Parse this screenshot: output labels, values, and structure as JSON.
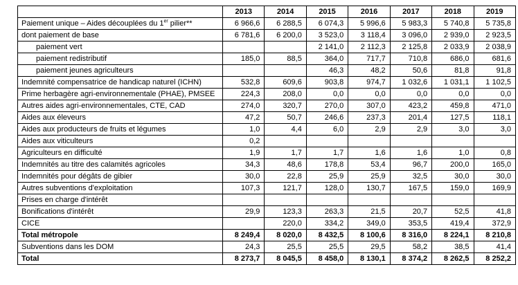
{
  "chart_data": {
    "type": "table",
    "columns": [
      "2013",
      "2014",
      "2015",
      "2016",
      "2017",
      "2018",
      "2019"
    ],
    "rows": [
      {
        "label": "Paiement unique – Aides découplées du 1er pilier**",
        "label_parts": [
          "Paiement unique – Aides découplées du 1",
          {
            "sup": "er"
          },
          " pilier**"
        ],
        "indent": 0,
        "bold": false,
        "values": [
          "6 966,6",
          "6 288,5",
          "6 074,3",
          "5 996,6",
          "5 983,3",
          "5 740,8",
          "5 735,8"
        ]
      },
      {
        "label": "dont paiement de base",
        "indent": 0,
        "bold": false,
        "values": [
          "6 781,6",
          "6 200,0",
          "3 523,0",
          "3 118,4",
          "3 096,0",
          "2 939,0",
          "2 923,5"
        ]
      },
      {
        "label": "paiement vert",
        "indent": 1,
        "bold": false,
        "values": [
          "",
          "",
          "2 141,0",
          "2 112,3",
          "2 125,8",
          "2 033,9",
          "2 038,9"
        ]
      },
      {
        "label": "paiement redistributif",
        "indent": 1,
        "bold": false,
        "values": [
          "185,0",
          "88,5",
          "364,0",
          "717,7",
          "710,8",
          "686,0",
          "681,6"
        ]
      },
      {
        "label": "paiement jeunes agriculteurs",
        "indent": 1,
        "bold": false,
        "values": [
          "",
          "",
          "46,3",
          "48,2",
          "50,6",
          "81,8",
          "91,8"
        ]
      },
      {
        "label": "Indemnité compensatrice de handicap naturel (ICHN)",
        "indent": 0,
        "bold": false,
        "values": [
          "532,8",
          "609,6",
          "903,8",
          "974,7",
          "1 032,6",
          "1 031,1",
          "1 102,5"
        ]
      },
      {
        "label": "Prime herbagère agri-environnementale (PHAE), PMSEE",
        "indent": 0,
        "bold": false,
        "values": [
          "224,3",
          "208,0",
          "0,0",
          "0,0",
          "0,0",
          "0,0",
          "0,0"
        ]
      },
      {
        "label": "Autres aides agri-environnementales, CTE, CAD",
        "indent": 0,
        "bold": false,
        "values": [
          "274,0",
          "320,7",
          "270,0",
          "307,0",
          "423,2",
          "459,8",
          "471,0"
        ]
      },
      {
        "label": "Aides aux éleveurs",
        "indent": 0,
        "bold": false,
        "values": [
          "47,2",
          "50,7",
          "246,6",
          "237,3",
          "201,4",
          "127,5",
          "118,1"
        ]
      },
      {
        "label": "Aides aux producteurs de fruits et légumes",
        "indent": 0,
        "bold": false,
        "values": [
          "1,0",
          "4,4",
          "6,0",
          "2,9",
          "2,9",
          "3,0",
          "3,0"
        ]
      },
      {
        "label": "Aides aux viticulteurs",
        "indent": 0,
        "bold": false,
        "values": [
          "0,2",
          "",
          "",
          "",
          "",
          "",
          ""
        ]
      },
      {
        "label": "Agriculteurs en difficulté",
        "indent": 0,
        "bold": false,
        "values": [
          "1,9",
          "1,7",
          "1,7",
          "1,6",
          "1,6",
          "1,0",
          "0,8"
        ]
      },
      {
        "label": "Indemnités au titre des calamités agricoles",
        "indent": 0,
        "bold": false,
        "values": [
          "34,3",
          "48,6",
          "178,8",
          "53,4",
          "96,7",
          "200,0",
          "165,0"
        ]
      },
      {
        "label": "Indemnités pour dégâts de gibier",
        "indent": 0,
        "bold": false,
        "values": [
          "30,0",
          "22,8",
          "25,9",
          "25,9",
          "32,5",
          "30,0",
          "30,0"
        ]
      },
      {
        "label": "Autres subventions d'exploitation",
        "indent": 0,
        "bold": false,
        "values": [
          "107,3",
          "121,7",
          "128,0",
          "130,7",
          "167,5",
          "159,0",
          "169,9"
        ]
      },
      {
        "label": "Prises en charge d'intérêt",
        "indent": 0,
        "bold": false,
        "values": [
          "",
          "",
          "",
          "",
          "",
          "",
          ""
        ]
      },
      {
        "label": "Bonifications d'intérêt",
        "indent": 0,
        "bold": false,
        "values": [
          "29,9",
          "123,3",
          "263,3",
          "21,5",
          "20,7",
          "52,5",
          "41,8"
        ]
      },
      {
        "label": "CICE",
        "indent": 0,
        "bold": false,
        "values": [
          "",
          "220,0",
          "334,2",
          "349,0",
          "353,5",
          "419,4",
          "372,9"
        ]
      },
      {
        "label": "Total métropole",
        "indent": 0,
        "bold": true,
        "values": [
          "8 249,4",
          "8 020,0",
          "8 432,5",
          "8 100,6",
          "8 316,0",
          "8 224,1",
          "8 210,8"
        ]
      },
      {
        "label": "Subventions dans les DOM",
        "indent": 0,
        "bold": false,
        "values": [
          "24,3",
          "25,5",
          "25,5",
          "29,5",
          "58,2",
          "38,5",
          "41,4"
        ]
      },
      {
        "label": "Total",
        "indent": 0,
        "bold": true,
        "values": [
          "8 273,7",
          "8 045,5",
          "8 458,0",
          "8 130,1",
          "8 374,2",
          "8 262,5",
          "8 252,2"
        ]
      }
    ]
  }
}
